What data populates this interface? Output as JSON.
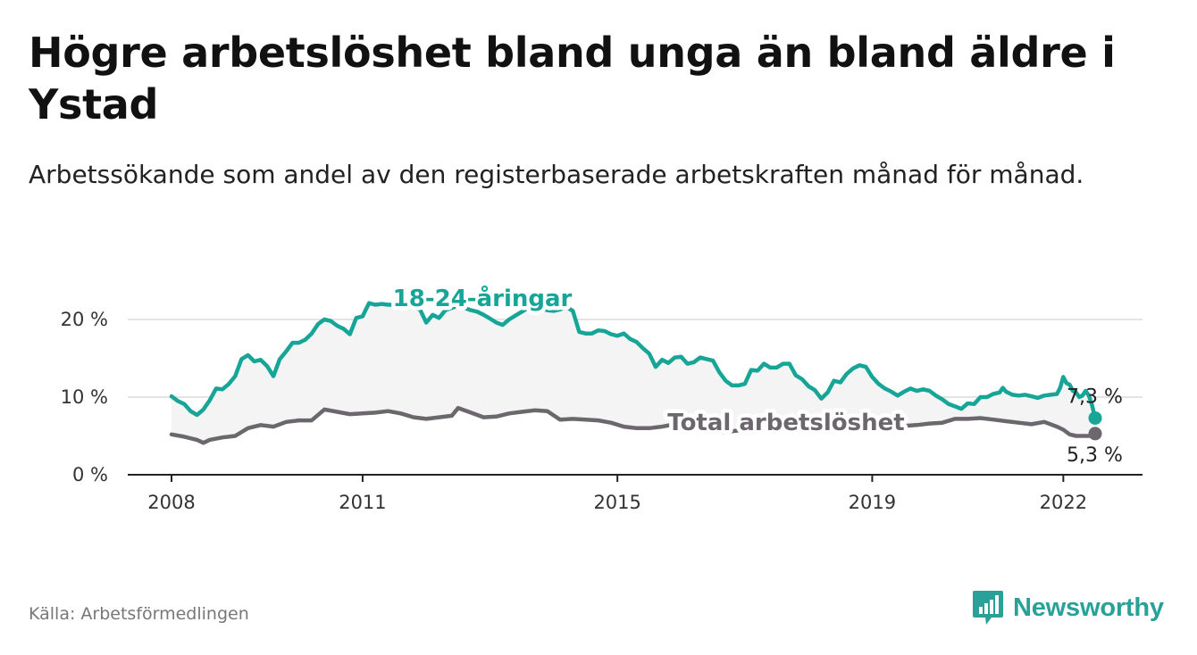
{
  "title": "Högre arbetslöshet bland unga än bland äldre i Ystad",
  "subtitle": "Arbetssökande som andel av den registerbaserade arbetskraften månad för månad.",
  "source": "Källa: Arbetsförmedlingen",
  "logo": {
    "text": "Newsworthy",
    "icon": "bar-chart-logo-icon",
    "color": "#2aa198"
  },
  "chart_data": {
    "type": "line",
    "ylim": [
      0,
      20
    ],
    "xlim": [
      2008,
      2022.5
    ],
    "y_ticks": [
      {
        "value": 0,
        "label": "0 %"
      },
      {
        "value": 10,
        "label": "10 %"
      },
      {
        "value": 20,
        "label": "20 %"
      }
    ],
    "x_ticks": [
      {
        "value": 2008,
        "label": "2008"
      },
      {
        "value": 2011,
        "label": "2011"
      },
      {
        "value": 2015,
        "label": "2015"
      },
      {
        "value": 2019,
        "label": "2019"
      },
      {
        "value": 2022,
        "label": "2022"
      }
    ],
    "area_between_series": true,
    "series": [
      {
        "name": "18-24-åringar",
        "color": "#16a596",
        "label_position": "top",
        "end_label": "7,3 %",
        "points": [
          [
            2008.0,
            10.1
          ],
          [
            2008.1,
            9.5
          ],
          [
            2008.2,
            9.1
          ],
          [
            2008.3,
            8.2
          ],
          [
            2008.4,
            7.7
          ],
          [
            2008.5,
            8.4
          ],
          [
            2008.6,
            9.6
          ],
          [
            2008.7,
            11.1
          ],
          [
            2008.8,
            11.0
          ],
          [
            2008.9,
            11.7
          ],
          [
            2009.0,
            12.7
          ],
          [
            2009.1,
            14.9
          ],
          [
            2009.2,
            15.4
          ],
          [
            2009.3,
            14.6
          ],
          [
            2009.4,
            14.8
          ],
          [
            2009.5,
            14.0
          ],
          [
            2009.6,
            12.7
          ],
          [
            2009.7,
            14.9
          ],
          [
            2009.8,
            15.9
          ],
          [
            2009.9,
            17.0
          ],
          [
            2010.0,
            17.0
          ],
          [
            2010.1,
            17.4
          ],
          [
            2010.2,
            18.2
          ],
          [
            2010.3,
            19.4
          ],
          [
            2010.4,
            20.0
          ],
          [
            2010.5,
            19.8
          ],
          [
            2010.6,
            19.2
          ],
          [
            2010.7,
            18.8
          ],
          [
            2010.8,
            18.1
          ],
          [
            2010.9,
            20.2
          ],
          [
            2011.0,
            20.4
          ],
          [
            2011.1,
            22.1
          ],
          [
            2011.2,
            21.9
          ],
          [
            2011.3,
            22.0
          ],
          [
            2011.4,
            21.9
          ],
          [
            2011.5,
            21.9
          ],
          [
            2011.6,
            21.7
          ],
          [
            2011.7,
            21.9
          ],
          [
            2011.8,
            21.6
          ],
          [
            2011.9,
            21.3
          ],
          [
            2012.0,
            19.6
          ],
          [
            2012.1,
            20.6
          ],
          [
            2012.2,
            20.2
          ],
          [
            2012.3,
            21.2
          ],
          [
            2012.4,
            21.5
          ],
          [
            2012.5,
            21.8
          ],
          [
            2012.6,
            21.5
          ],
          [
            2012.7,
            21.2
          ],
          [
            2012.8,
            21.0
          ],
          [
            2012.9,
            20.6
          ],
          [
            2013.0,
            20.1
          ],
          [
            2013.1,
            19.6
          ],
          [
            2013.2,
            19.3
          ],
          [
            2013.3,
            20.0
          ],
          [
            2013.4,
            20.5
          ],
          [
            2013.5,
            21.0
          ],
          [
            2013.6,
            21.5
          ],
          [
            2013.7,
            21.6
          ],
          [
            2013.8,
            21.4
          ],
          [
            2013.9,
            21.2
          ],
          [
            2014.0,
            21.1
          ],
          [
            2014.1,
            21.3
          ],
          [
            2014.2,
            21.6
          ],
          [
            2014.3,
            21.1
          ],
          [
            2014.4,
            18.4
          ],
          [
            2014.5,
            18.2
          ],
          [
            2014.6,
            18.2
          ],
          [
            2014.7,
            18.6
          ],
          [
            2014.8,
            18.5
          ],
          [
            2014.9,
            18.1
          ],
          [
            2015.0,
            17.9
          ],
          [
            2015.1,
            18.2
          ],
          [
            2015.2,
            17.5
          ],
          [
            2015.3,
            17.1
          ],
          [
            2015.4,
            16.3
          ],
          [
            2015.5,
            15.6
          ],
          [
            2015.6,
            13.9
          ],
          [
            2015.7,
            14.8
          ],
          [
            2015.8,
            14.4
          ],
          [
            2015.9,
            15.1
          ],
          [
            2016.0,
            15.2
          ],
          [
            2016.1,
            14.3
          ],
          [
            2016.2,
            14.5
          ],
          [
            2016.3,
            15.1
          ],
          [
            2016.4,
            14.9
          ],
          [
            2016.5,
            14.7
          ],
          [
            2016.6,
            13.2
          ],
          [
            2016.7,
            12.1
          ],
          [
            2016.8,
            11.5
          ],
          [
            2016.9,
            11.5
          ],
          [
            2017.0,
            11.7
          ],
          [
            2017.1,
            13.5
          ],
          [
            2017.2,
            13.4
          ],
          [
            2017.3,
            14.3
          ],
          [
            2017.4,
            13.8
          ],
          [
            2017.5,
            13.8
          ],
          [
            2017.6,
            14.3
          ],
          [
            2017.7,
            14.3
          ],
          [
            2017.8,
            12.8
          ],
          [
            2017.9,
            12.3
          ],
          [
            2018.0,
            11.4
          ],
          [
            2018.1,
            10.9
          ],
          [
            2018.2,
            9.8
          ],
          [
            2018.3,
            10.6
          ],
          [
            2018.4,
            12.1
          ],
          [
            2018.5,
            11.9
          ],
          [
            2018.6,
            13.0
          ],
          [
            2018.7,
            13.7
          ],
          [
            2018.8,
            14.1
          ],
          [
            2018.9,
            13.9
          ],
          [
            2019.0,
            12.6
          ],
          [
            2019.1,
            11.7
          ],
          [
            2019.2,
            11.1
          ],
          [
            2019.3,
            10.7
          ],
          [
            2019.4,
            10.2
          ],
          [
            2019.5,
            10.7
          ],
          [
            2019.6,
            11.1
          ],
          [
            2019.7,
            10.8
          ],
          [
            2019.8,
            11.0
          ],
          [
            2019.9,
            10.8
          ],
          [
            2020.0,
            10.2
          ],
          [
            2020.1,
            9.7
          ],
          [
            2020.2,
            9.1
          ],
          [
            2020.3,
            8.8
          ],
          [
            2020.4,
            8.5
          ],
          [
            2020.5,
            9.2
          ],
          [
            2020.6,
            9.1
          ],
          [
            2020.7,
            10.0
          ],
          [
            2020.8,
            10.0
          ],
          [
            2020.9,
            10.4
          ],
          [
            2021.0,
            10.6
          ],
          [
            2021.05,
            11.2
          ],
          [
            2021.1,
            10.7
          ],
          [
            2021.2,
            10.3
          ],
          [
            2021.3,
            10.2
          ],
          [
            2021.4,
            10.3
          ],
          [
            2021.5,
            10.1
          ],
          [
            2021.6,
            9.9
          ],
          [
            2021.7,
            10.2
          ],
          [
            2021.8,
            10.3
          ],
          [
            2021.9,
            10.4
          ],
          [
            2021.95,
            11.2
          ],
          [
            2022.0,
            12.6
          ],
          [
            2022.05,
            11.8
          ],
          [
            2022.1,
            11.6
          ],
          [
            2022.15,
            10.8
          ],
          [
            2022.2,
            10.6
          ],
          [
            2022.25,
            10.0
          ],
          [
            2022.3,
            10.2
          ],
          [
            2022.35,
            10.8
          ],
          [
            2022.4,
            10.2
          ],
          [
            2022.45,
            9.0
          ],
          [
            2022.5,
            7.3
          ]
        ]
      },
      {
        "name": "Total arbetslöshet",
        "color": "#6b676c",
        "label_position": "middle",
        "end_label": "5,3 %",
        "points": [
          [
            2008.0,
            5.2
          ],
          [
            2008.2,
            4.9
          ],
          [
            2008.4,
            4.5
          ],
          [
            2008.5,
            4.1
          ],
          [
            2008.6,
            4.5
          ],
          [
            2008.8,
            4.8
          ],
          [
            2009.0,
            5.0
          ],
          [
            2009.2,
            6.0
          ],
          [
            2009.4,
            6.4
          ],
          [
            2009.6,
            6.2
          ],
          [
            2009.8,
            6.8
          ],
          [
            2010.0,
            7.0
          ],
          [
            2010.2,
            7.0
          ],
          [
            2010.4,
            8.4
          ],
          [
            2010.6,
            8.1
          ],
          [
            2010.8,
            7.8
          ],
          [
            2011.0,
            7.9
          ],
          [
            2011.2,
            8.0
          ],
          [
            2011.4,
            8.2
          ],
          [
            2011.6,
            7.9
          ],
          [
            2011.8,
            7.4
          ],
          [
            2012.0,
            7.2
          ],
          [
            2012.2,
            7.4
          ],
          [
            2012.4,
            7.6
          ],
          [
            2012.5,
            8.6
          ],
          [
            2012.7,
            8.0
          ],
          [
            2012.9,
            7.4
          ],
          [
            2013.1,
            7.5
          ],
          [
            2013.3,
            7.9
          ],
          [
            2013.5,
            8.1
          ],
          [
            2013.7,
            8.3
          ],
          [
            2013.9,
            8.2
          ],
          [
            2014.1,
            7.1
          ],
          [
            2014.3,
            7.2
          ],
          [
            2014.5,
            7.1
          ],
          [
            2014.7,
            7.0
          ],
          [
            2014.9,
            6.7
          ],
          [
            2015.1,
            6.2
          ],
          [
            2015.3,
            6.0
          ],
          [
            2015.5,
            6.0
          ],
          [
            2015.7,
            6.2
          ],
          [
            2015.9,
            6.5
          ],
          [
            2016.1,
            6.3
          ],
          [
            2016.3,
            5.9
          ],
          [
            2016.5,
            5.6
          ],
          [
            2016.7,
            5.5
          ],
          [
            2016.9,
            5.7
          ],
          [
            2017.1,
            6.0
          ],
          [
            2017.3,
            6.2
          ],
          [
            2017.5,
            6.2
          ],
          [
            2017.7,
            6.4
          ],
          [
            2017.9,
            6.2
          ],
          [
            2018.1,
            6.0
          ],
          [
            2018.3,
            6.1
          ],
          [
            2018.5,
            6.2
          ],
          [
            2018.7,
            6.3
          ],
          [
            2018.9,
            6.2
          ],
          [
            2019.1,
            6.2
          ],
          [
            2019.3,
            6.3
          ],
          [
            2019.5,
            6.3
          ],
          [
            2019.7,
            6.4
          ],
          [
            2019.9,
            6.6
          ],
          [
            2020.1,
            6.7
          ],
          [
            2020.3,
            7.2
          ],
          [
            2020.5,
            7.2
          ],
          [
            2020.7,
            7.3
          ],
          [
            2020.9,
            7.1
          ],
          [
            2021.1,
            6.9
          ],
          [
            2021.3,
            6.7
          ],
          [
            2021.5,
            6.5
          ],
          [
            2021.7,
            6.8
          ],
          [
            2021.9,
            6.2
          ],
          [
            2022.0,
            5.8
          ],
          [
            2022.1,
            5.2
          ],
          [
            2022.2,
            5.0
          ],
          [
            2022.3,
            5.0
          ],
          [
            2022.4,
            5.0
          ],
          [
            2022.5,
            5.3
          ]
        ]
      }
    ]
  }
}
